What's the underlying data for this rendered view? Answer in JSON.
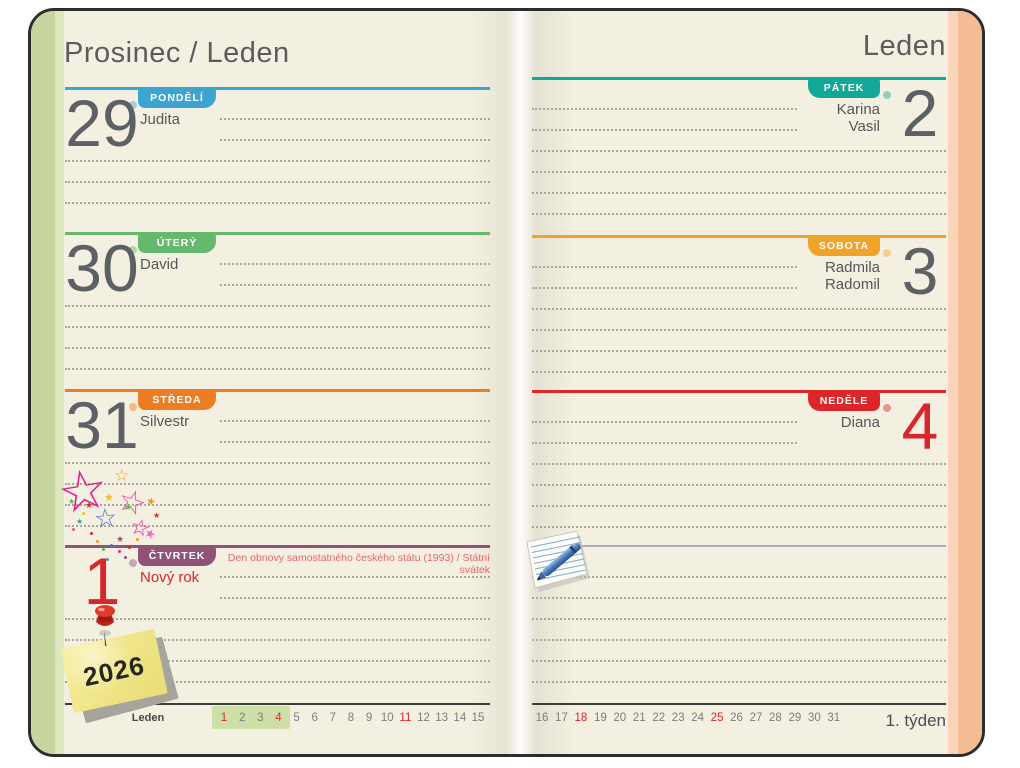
{
  "left_page": {
    "header": "Prosinec / Leden",
    "days": [
      {
        "date": "29",
        "day": "PONDĚLÍ",
        "names": [
          "Judita"
        ],
        "color": "#3ba4d1",
        "date_color": "#5d6064",
        "name_color": "#55565a"
      },
      {
        "date": "30",
        "day": "ÚTERÝ",
        "names": [
          "David"
        ],
        "color": "#64b96d",
        "date_color": "#5d6064",
        "name_color": "#55565a"
      },
      {
        "date": "31",
        "day": "STŘEDA",
        "names": [
          "Silvestr"
        ],
        "color": "#ee7c22",
        "date_color": "#5d6064",
        "name_color": "#55565a"
      },
      {
        "date": "1",
        "day": "ČTVRTEK",
        "names": [
          "Nový rok"
        ],
        "color": "#8f5378",
        "date_color": "#d9262b",
        "name_color": "#d9262b",
        "holiday": "Den obnovy samostatného českého státu (1993) / Státní svátek",
        "holiday_color": "#e8646b"
      }
    ],
    "mini_calendar": {
      "month_label": "Leden",
      "dates": [
        "1",
        "2",
        "3",
        "4",
        "5",
        "6",
        "7",
        "8",
        "9",
        "10",
        "11",
        "12",
        "13",
        "14",
        "15"
      ],
      "highlighted_dates": [
        "1",
        "2",
        "3",
        "4"
      ],
      "red_dates": [
        "1",
        "4",
        "11"
      ],
      "highlight_color": "#cddfa6"
    }
  },
  "right_page": {
    "header": "Leden",
    "days": [
      {
        "date": "2",
        "day": "PÁTEK",
        "names": [
          "Karina",
          "Vasil"
        ],
        "color": "#13a79a",
        "date_color": "#5d6064",
        "name_color": "#55565a"
      },
      {
        "date": "3",
        "day": "SOBOTA",
        "names": [
          "Radmila",
          "Radomil"
        ],
        "color": "#f0a32a",
        "date_color": "#5d6064",
        "name_color": "#55565a"
      },
      {
        "date": "4",
        "day": "NEDĚLE",
        "names": [
          "Diana"
        ],
        "color": "#dc2629",
        "date_color": "#d9262b",
        "name_color": "#55565a"
      }
    ],
    "mini_calendar": {
      "dates": [
        "16",
        "17",
        "18",
        "19",
        "20",
        "21",
        "22",
        "23",
        "24",
        "25",
        "26",
        "27",
        "28",
        "29",
        "30",
        "31"
      ],
      "red_dates": [
        "18",
        "25"
      ]
    },
    "week_label": "1. týden"
  },
  "stickers": {
    "sticky_note_text": "2026",
    "stars_sticker": "colorful stars burst",
    "notepad_sticker": "notepad with blue pen"
  },
  "colors": {
    "paper": "#f4f0e1",
    "left_edge": "#c6d69e",
    "right_edge": "#f3bc92",
    "red_text": "#d9262b",
    "dotted_line": "#a9a79b"
  }
}
